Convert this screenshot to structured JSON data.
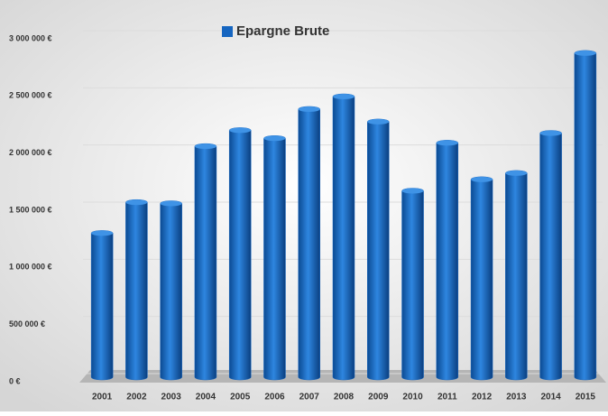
{
  "chart_data": {
    "type": "bar",
    "series": [
      {
        "name": "Epargne Brute",
        "color": "#1565c0",
        "values": [
          1260000,
          1530000,
          1520000,
          2020000,
          2160000,
          2090000,
          2345000,
          2455000,
          2235000,
          1630000,
          2050000,
          1730000,
          1785000,
          2135000,
          2835000
        ]
      }
    ],
    "categories": [
      "2001",
      "2002",
      "2003",
      "2004",
      "2005",
      "2006",
      "2007",
      "2008",
      "2009",
      "2010",
      "2011",
      "2012",
      "2013",
      "2014",
      "2015"
    ],
    "ylim": [
      0,
      3000000
    ],
    "yticks": [
      {
        "value": 0,
        "label": "0 €"
      },
      {
        "value": 500000,
        "label": "500 000 €"
      },
      {
        "value": 1000000,
        "label": "1 000 000 €"
      },
      {
        "value": 1500000,
        "label": "1 500 000 €"
      },
      {
        "value": 2000000,
        "label": "2 000 000 €"
      },
      {
        "value": 2500000,
        "label": "2 500 000 €"
      },
      {
        "value": 3000000,
        "label": "3 000 000 €"
      }
    ],
    "grid": true,
    "legend": "top"
  }
}
